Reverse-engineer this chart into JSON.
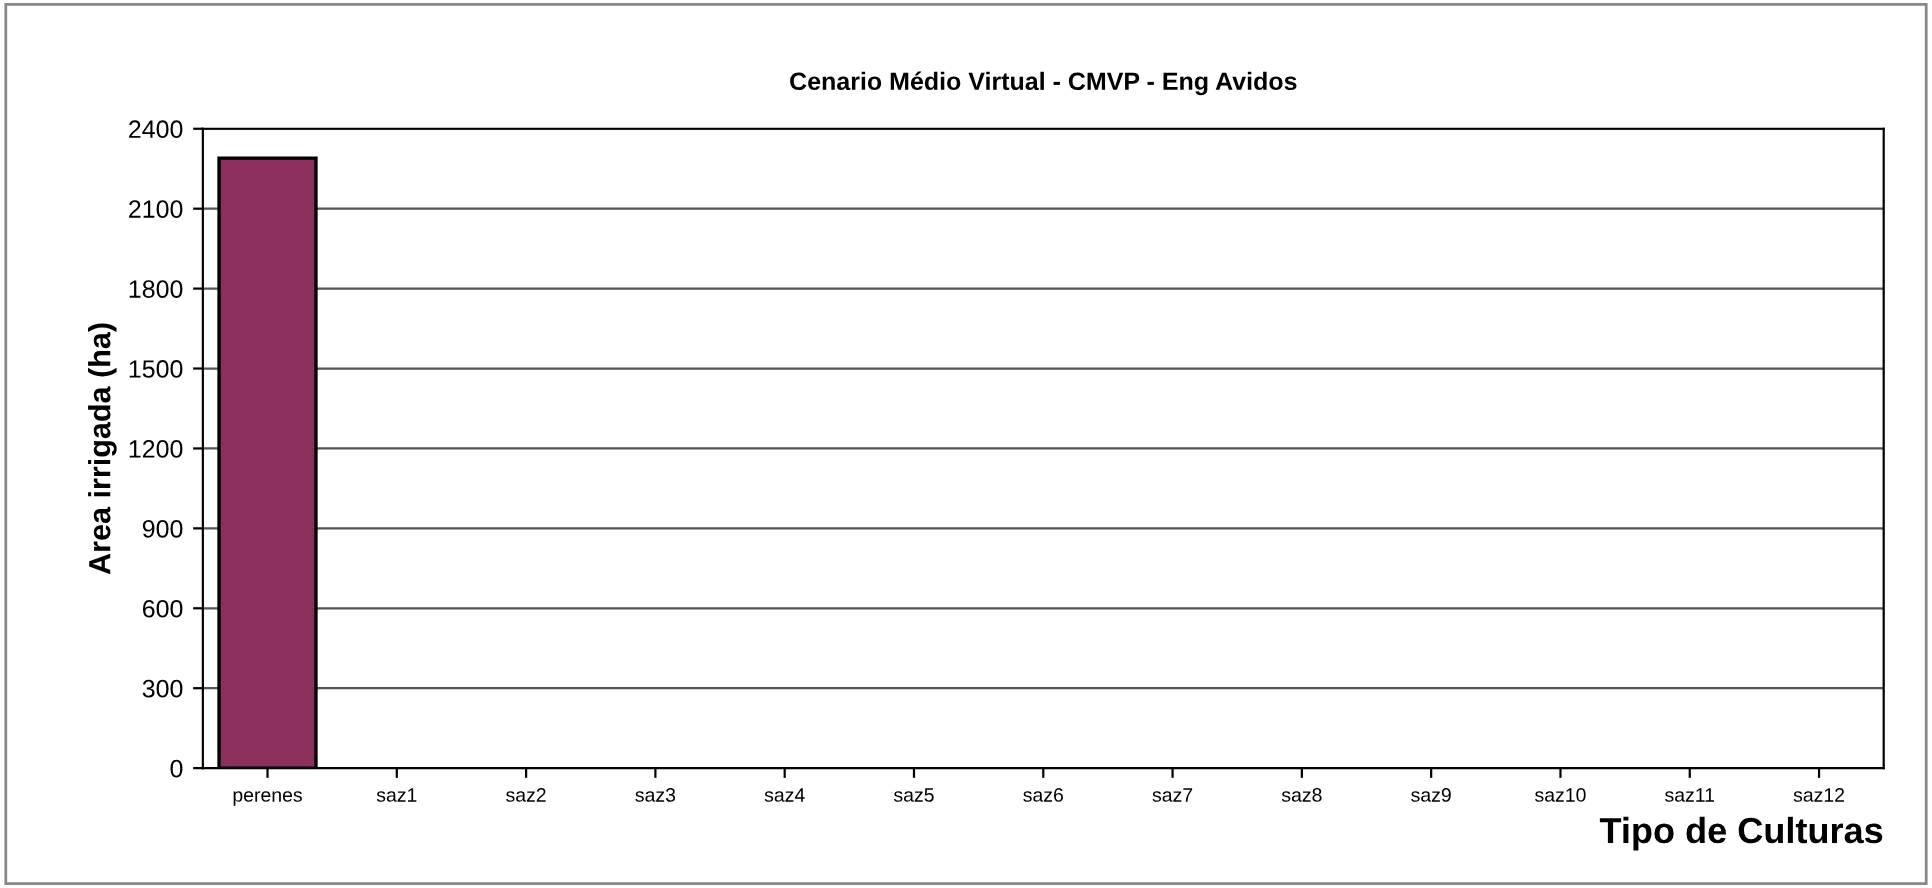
{
  "chart_data": {
    "type": "bar",
    "title": "Cenario Médio Virtual - CMVP - Eng Avidos",
    "xlabel": "Tipo de Culturas",
    "ylabel": "Area irrigada (ha)",
    "categories": [
      "perenes",
      "saz1",
      "saz2",
      "saz3",
      "saz4",
      "saz5",
      "saz6",
      "saz7",
      "saz8",
      "saz9",
      "saz10",
      "saz11",
      "saz12"
    ],
    "values": [
      2290,
      0,
      0,
      0,
      0,
      0,
      0,
      0,
      0,
      0,
      0,
      0,
      0
    ],
    "color": "#8b2f5c",
    "ylim": [
      0,
      2400
    ],
    "yticks": [
      0,
      300,
      600,
      900,
      1200,
      1500,
      1800,
      2100,
      2400
    ],
    "grid": "y"
  }
}
